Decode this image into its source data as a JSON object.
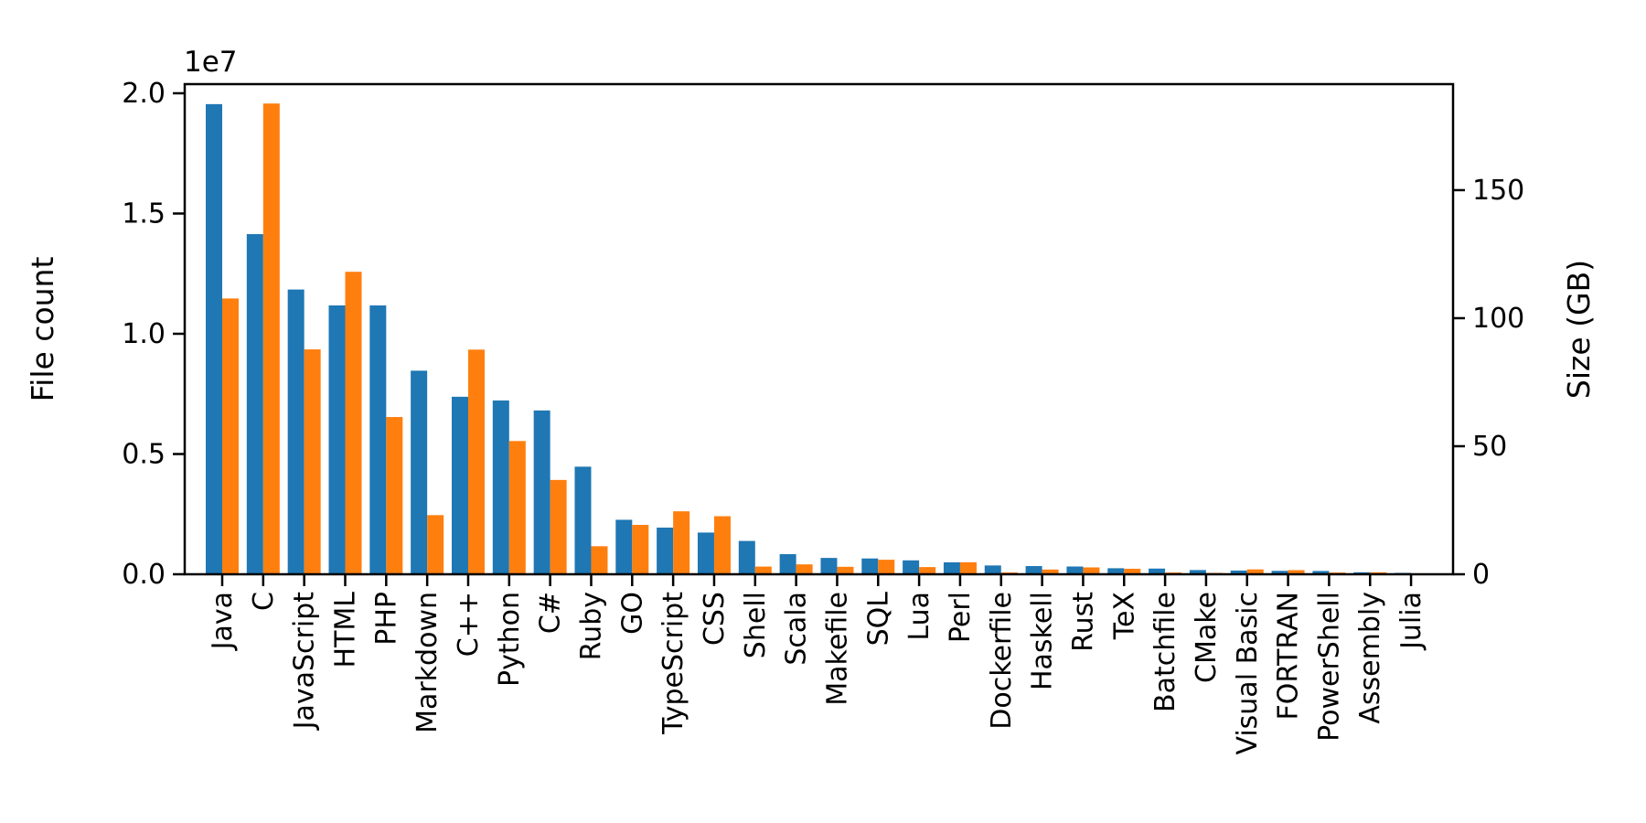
{
  "figure": {
    "background": "#ffffff",
    "offset_text": "1e7",
    "left_axis": {
      "label": "File count",
      "label_color": "#1f77b4",
      "tick_values": [
        0,
        5000000,
        10000000,
        15000000,
        20000000
      ],
      "tick_labels": [
        "0.0",
        "0.5",
        "1.0",
        "1.5",
        "2.0"
      ]
    },
    "right_axis": {
      "label": "Size (GB)",
      "label_color": "#ff7f0e",
      "tick_values": [
        0,
        50,
        100,
        150
      ],
      "tick_labels": [
        "0",
        "50",
        "100",
        "150"
      ]
    }
  },
  "chart_data": {
    "type": "bar",
    "title": "",
    "xlabel": "",
    "grid": false,
    "legend_position": "none",
    "categories": [
      "Java",
      "C",
      "JavaScript",
      "HTML",
      "PHP",
      "Markdown",
      "C++",
      "Python",
      "C#",
      "Ruby",
      "GO",
      "TypeScript",
      "CSS",
      "Shell",
      "Scala",
      "Makefile",
      "SQL",
      "Lua",
      "Perl",
      "Dockerfile",
      "Haskell",
      "Rust",
      "TeX",
      "Batchfile",
      "CMake",
      "Visual Basic",
      "FORTRAN",
      "PowerShell",
      "Assembly",
      "Julia"
    ],
    "series": [
      {
        "name": "File count",
        "axis": "left",
        "color": "#1f77b4",
        "values": [
          19548190,
          14143113,
          11839883,
          11178557,
          11177610,
          8464626,
          7380520,
          7226626,
          6811652,
          4473331,
          2265436,
          1940406,
          1734406,
          1385648,
          835755,
          679430,
          656671,
          578554,
          497949,
          366505,
          340623,
          322431,
          251015,
          236945,
          175282,
          155652,
          142038,
          136846,
          82905,
          58317
        ]
      },
      {
        "name": "Size (GB)",
        "axis": "right",
        "color": "#ff7f0e",
        "values": [
          107.7,
          183.83,
          87.82,
          118.12,
          61.41,
          23.09,
          87.73,
          52.03,
          36.83,
          10.95,
          19.28,
          24.59,
          22.67,
          3.01,
          3.87,
          2.92,
          5.67,
          2.81,
          4.7,
          0.71,
          1.85,
          2.68,
          2.15,
          0.7,
          0.54,
          1.91,
          1.62,
          0.69,
          0.78,
          0.29
        ]
      }
    ],
    "ylabel_left": "File count",
    "ylabel_right": "Size (GB)",
    "ylim_left": [
      0,
      20380000
    ],
    "ylim_right": [
      0,
      191.4
    ],
    "bar_width_fraction": 0.4
  }
}
